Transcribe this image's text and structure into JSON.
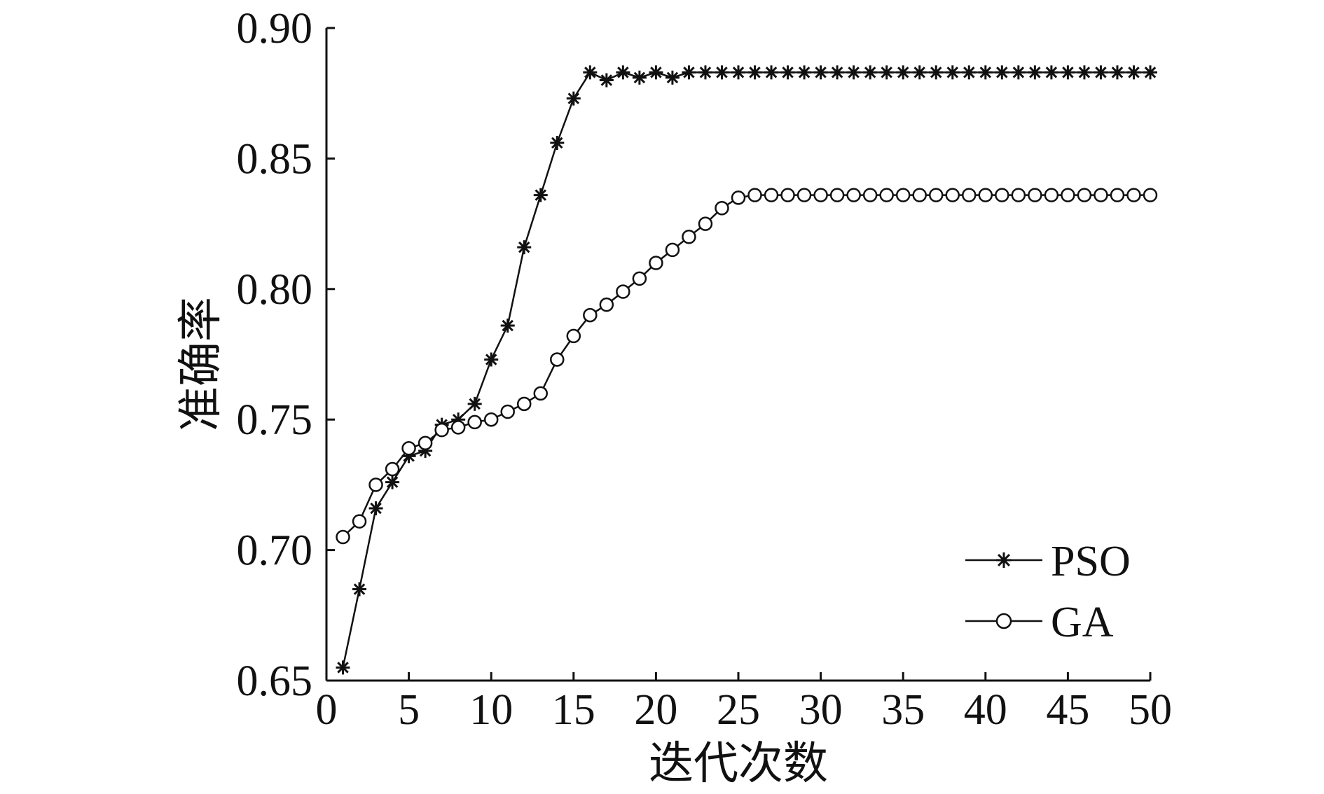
{
  "chart_data": {
    "type": "line",
    "title": "",
    "xlabel": "迭代次数",
    "ylabel": "准确率",
    "xlim": [
      0,
      50
    ],
    "ylim": [
      0.65,
      0.9
    ],
    "xticks": [
      "0",
      "5",
      "10",
      "15",
      "20",
      "25",
      "30",
      "35",
      "40",
      "45",
      "50"
    ],
    "yticks": [
      "0.65",
      "0.70",
      "0.75",
      "0.80",
      "0.85",
      "0.90"
    ],
    "grid": false,
    "legend_position": "bottom-right",
    "x": [
      1,
      2,
      3,
      4,
      5,
      6,
      7,
      8,
      9,
      10,
      11,
      12,
      13,
      14,
      15,
      16,
      17,
      18,
      19,
      20,
      21,
      22,
      23,
      24,
      25,
      26,
      27,
      28,
      29,
      30,
      31,
      32,
      33,
      34,
      35,
      36,
      37,
      38,
      39,
      40,
      41,
      42,
      43,
      44,
      45,
      46,
      47,
      48,
      49,
      50
    ],
    "series": [
      {
        "name": "PSO",
        "marker": "star",
        "values": [
          0.655,
          0.685,
          0.716,
          0.726,
          0.736,
          0.738,
          0.748,
          0.75,
          0.756,
          0.773,
          0.786,
          0.816,
          0.836,
          0.856,
          0.873,
          0.883,
          0.88,
          0.883,
          0.881,
          0.883,
          0.881,
          0.883,
          0.883,
          0.883,
          0.883,
          0.883,
          0.883,
          0.883,
          0.883,
          0.883,
          0.883,
          0.883,
          0.883,
          0.883,
          0.883,
          0.883,
          0.883,
          0.883,
          0.883,
          0.883,
          0.883,
          0.883,
          0.883,
          0.883,
          0.883,
          0.883,
          0.883,
          0.883,
          0.883,
          0.883
        ]
      },
      {
        "name": "GA",
        "marker": "circle",
        "values": [
          0.705,
          0.711,
          0.725,
          0.731,
          0.739,
          0.741,
          0.746,
          0.747,
          0.749,
          0.75,
          0.753,
          0.756,
          0.76,
          0.773,
          0.782,
          0.79,
          0.794,
          0.799,
          0.804,
          0.81,
          0.815,
          0.82,
          0.825,
          0.831,
          0.835,
          0.836,
          0.836,
          0.836,
          0.836,
          0.836,
          0.836,
          0.836,
          0.836,
          0.836,
          0.836,
          0.836,
          0.836,
          0.836,
          0.836,
          0.836,
          0.836,
          0.836,
          0.836,
          0.836,
          0.836,
          0.836,
          0.836,
          0.836,
          0.836,
          0.836
        ]
      }
    ]
  }
}
